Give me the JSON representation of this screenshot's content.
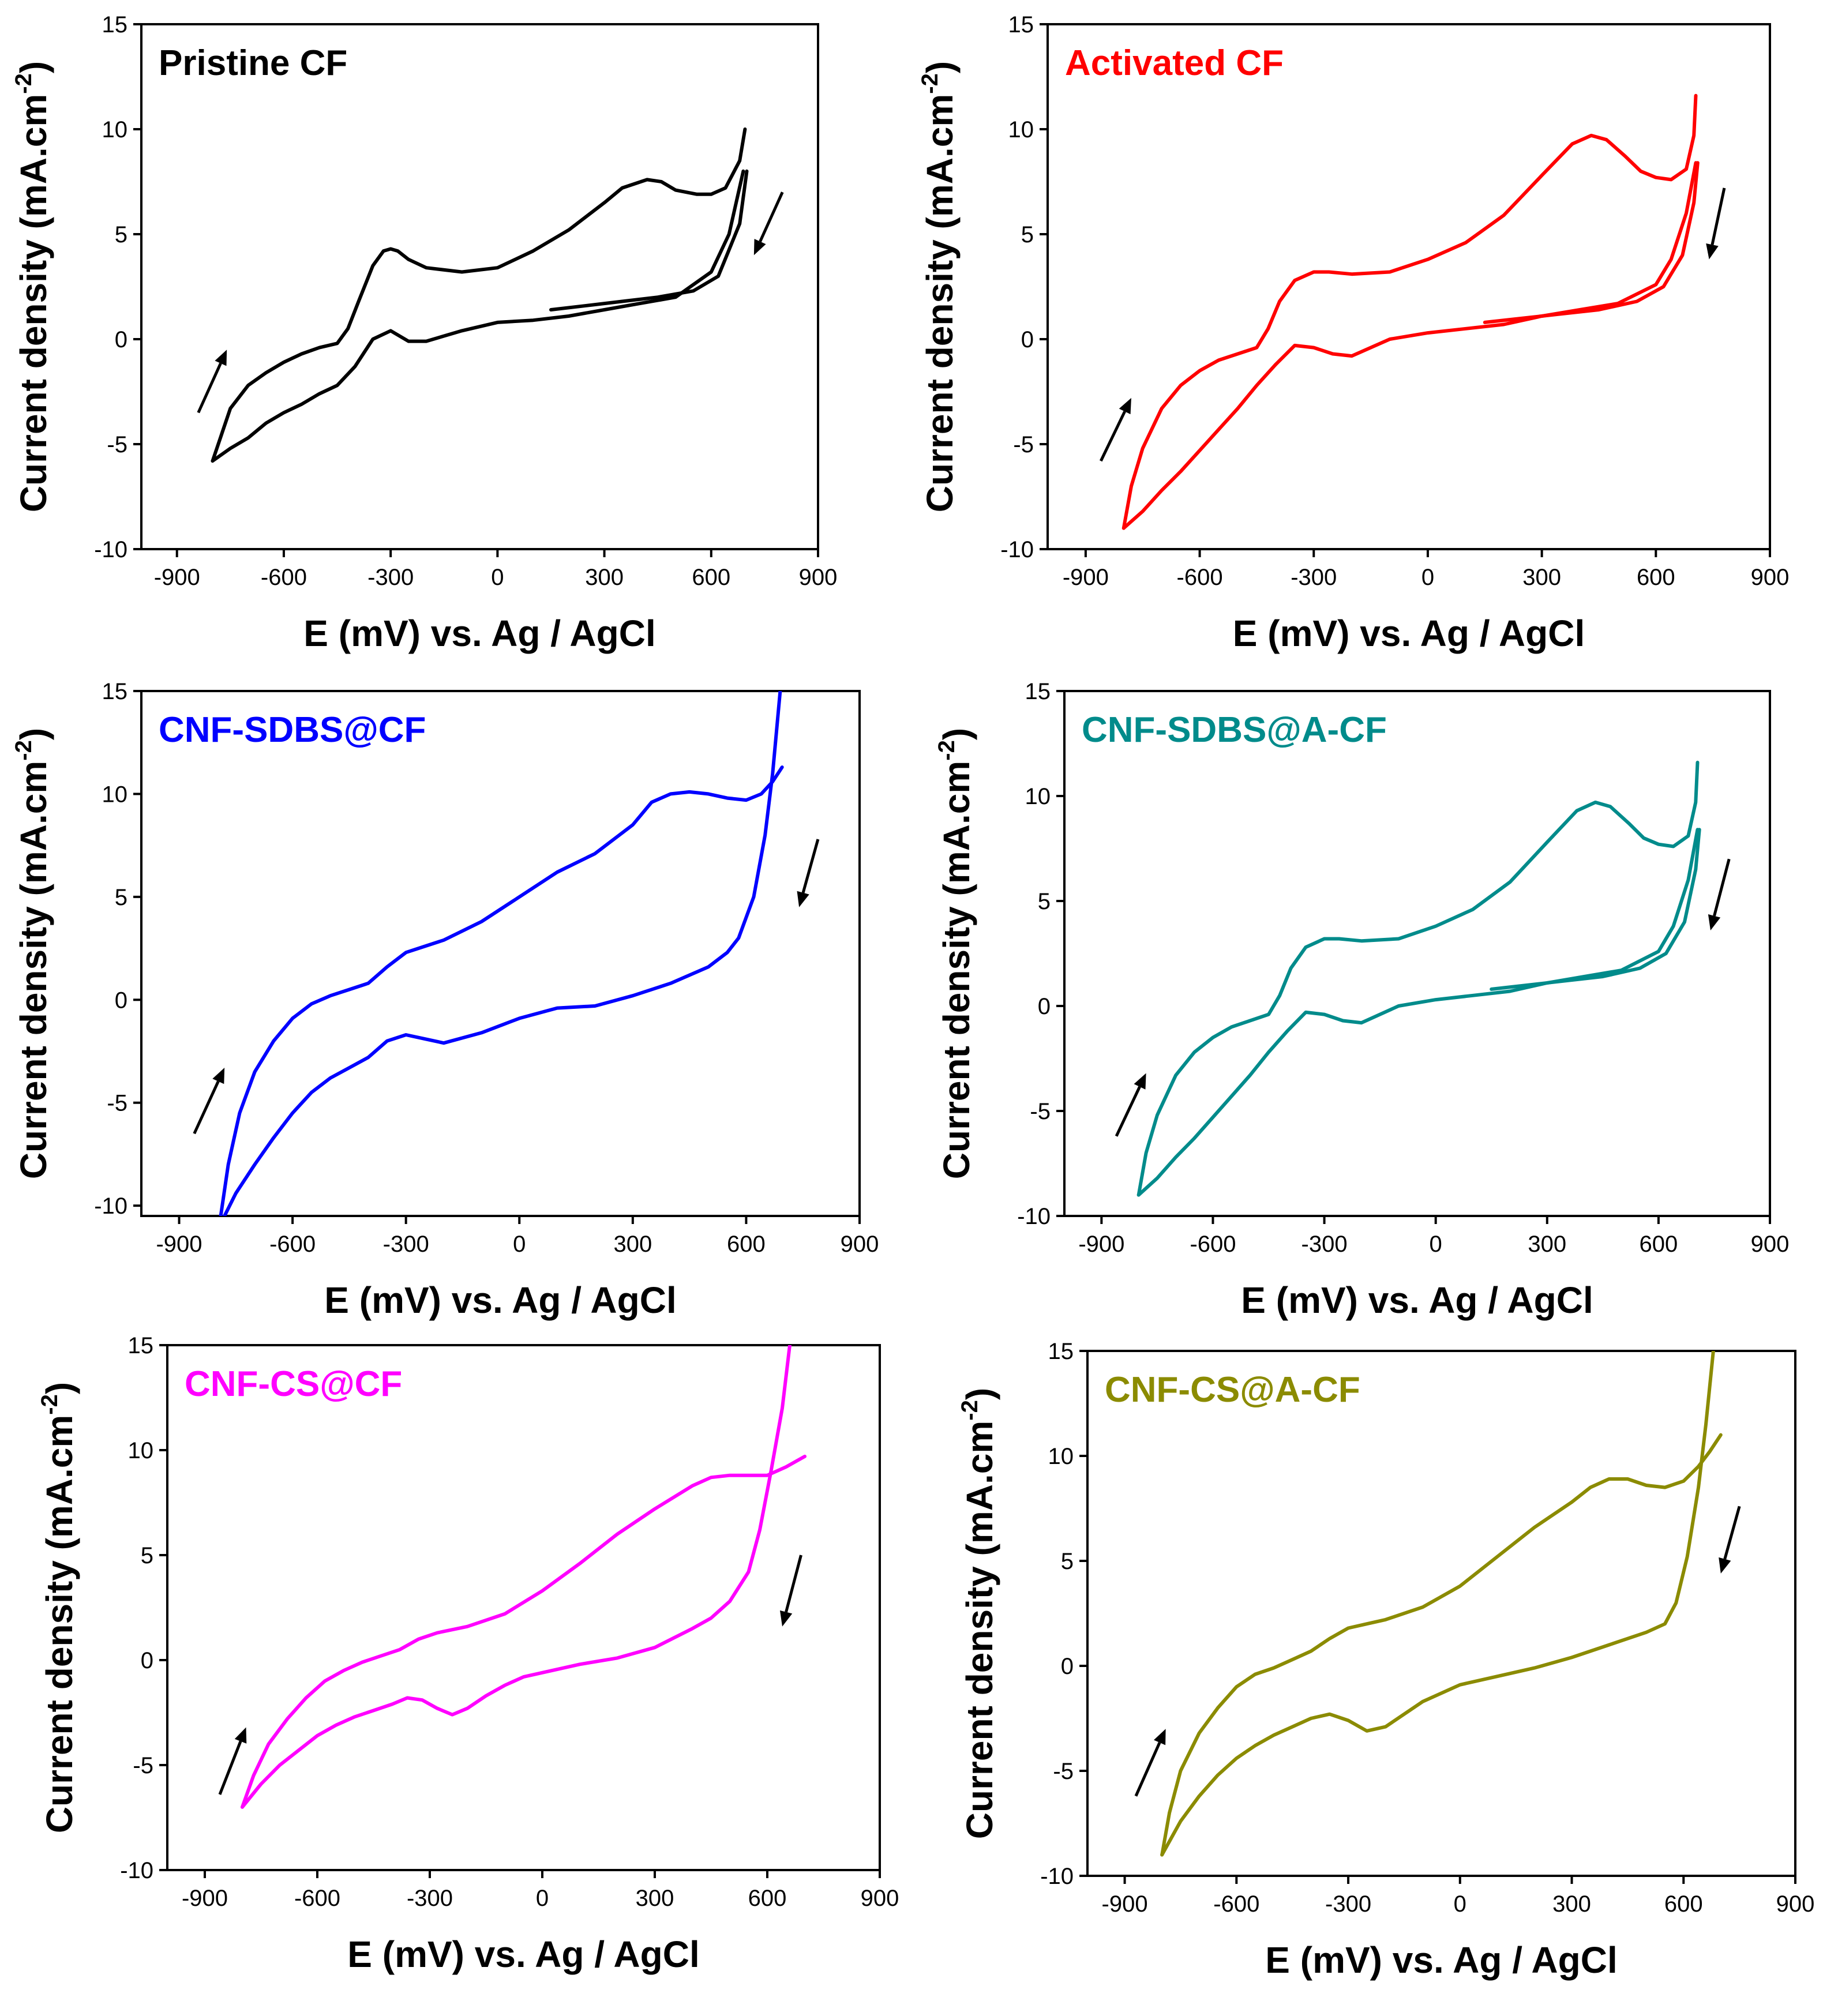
{
  "chart_data": [
    {
      "type": "line",
      "title": "Pristine CF",
      "color": "#000000",
      "xlabel": "E (mV) vs. Ag / AgCl",
      "ylabel": "Current density (mA.cm",
      "ylabel_sup": "-2",
      "ylabel_close": ")",
      "xlim": [
        -1000,
        900
      ],
      "ylim": [
        -10,
        15
      ],
      "xticks": [
        "-900",
        "-600",
        "-300",
        "0",
        "300",
        "600",
        "900"
      ],
      "yticks": [
        "-10",
        "-5",
        "0",
        "5",
        "10",
        "15"
      ],
      "series": [
        {
          "name": "anodic",
          "x": [
            -800,
            -750,
            -700,
            -650,
            -600,
            -550,
            -500,
            -450,
            -420,
            -390,
            -350,
            -320,
            -300,
            -280,
            -250,
            -200,
            -100,
            0,
            100,
            200,
            300,
            350,
            420,
            460,
            500,
            560,
            600,
            640,
            680,
            695
          ],
          "y": [
            -5.8,
            -3.3,
            -2.2,
            -1.6,
            -1.1,
            -0.7,
            -0.4,
            -0.2,
            0.5,
            1.8,
            3.5,
            4.2,
            4.3,
            4.2,
            3.8,
            3.4,
            3.2,
            3.4,
            4.2,
            5.2,
            6.5,
            7.2,
            7.6,
            7.5,
            7.1,
            6.9,
            6.9,
            7.2,
            8.5,
            10.0
          ]
        },
        {
          "name": "cathodic",
          "x": [
            690,
            650,
            600,
            500,
            400,
            300,
            200,
            100,
            0,
            -100,
            -200,
            -250,
            -300,
            -350,
            -400,
            -450,
            -500,
            -550,
            -600,
            -650,
            -700,
            -750,
            -800
          ],
          "y": [
            8.0,
            5.0,
            3.2,
            2.0,
            1.7,
            1.4,
            1.1,
            0.9,
            0.8,
            0.4,
            -0.1,
            -0.1,
            0.4,
            0.0,
            -1.3,
            -2.2,
            -2.6,
            -3.1,
            -3.5,
            -4.0,
            -4.7,
            -5.2,
            -5.8
          ]
        },
        {
          "name": "cycle-tail",
          "x": [
            150,
            250,
            350,
            450,
            550,
            620,
            680,
            700
          ],
          "y": [
            1.4,
            1.6,
            1.8,
            2.0,
            2.3,
            3.0,
            5.5,
            8.0
          ]
        }
      ],
      "arrows": [
        {
          "from": [
            -840,
            -3.5
          ],
          "to": [
            -760,
            -0.5
          ]
        },
        {
          "from": [
            800,
            7.0
          ],
          "to": [
            720,
            4.0
          ]
        }
      ]
    },
    {
      "type": "line",
      "title": "Activated CF",
      "color": "#ff0000",
      "xlabel": "E (mV) vs. Ag / AgCl",
      "ylabel": "Current density (mA.cm",
      "ylabel_sup": "-2",
      "ylabel_close": ")",
      "xlim": [
        -1000,
        900
      ],
      "ylim": [
        -10,
        15
      ],
      "xticks": [
        "-900",
        "-600",
        "-300",
        "0",
        "300",
        "600",
        "900"
      ],
      "yticks": [
        "-10",
        "-5",
        "0",
        "5",
        "10",
        "15"
      ],
      "series": [
        {
          "name": "anodic",
          "x": [
            -800,
            -780,
            -750,
            -700,
            -650,
            -600,
            -550,
            -500,
            -450,
            -420,
            -390,
            -350,
            -300,
            -260,
            -200,
            -100,
            0,
            100,
            200,
            300,
            380,
            430,
            470,
            520,
            560,
            600,
            640,
            680,
            700,
            705
          ],
          "y": [
            -9.0,
            -7.0,
            -5.2,
            -3.3,
            -2.2,
            -1.5,
            -1.0,
            -0.7,
            -0.4,
            0.5,
            1.8,
            2.8,
            3.2,
            3.2,
            3.1,
            3.2,
            3.8,
            4.6,
            5.9,
            7.8,
            9.3,
            9.7,
            9.5,
            8.7,
            8.0,
            7.7,
            7.6,
            8.1,
            9.7,
            11.6
          ]
        },
        {
          "name": "cathodic",
          "x": [
            705,
            680,
            640,
            600,
            500,
            400,
            300,
            200,
            100,
            0,
            -100,
            -200,
            -250,
            -300,
            -350,
            -400,
            -450,
            -500,
            -550,
            -600,
            -650,
            -700,
            -750,
            -800
          ],
          "y": [
            8.4,
            6.0,
            3.8,
            2.6,
            1.7,
            1.4,
            1.1,
            0.7,
            0.5,
            0.3,
            0.0,
            -0.8,
            -0.7,
            -0.4,
            -0.3,
            -1.2,
            -2.2,
            -3.3,
            -4.3,
            -5.3,
            -6.3,
            -7.2,
            -8.2,
            -9.0
          ]
        },
        {
          "name": "cycle-tail",
          "x": [
            150,
            250,
            350,
            450,
            550,
            620,
            670,
            700,
            710
          ],
          "y": [
            0.8,
            1.0,
            1.2,
            1.4,
            1.8,
            2.5,
            4.0,
            6.5,
            8.4
          ]
        }
      ],
      "arrows": [
        {
          "from": [
            -860,
            -5.8
          ],
          "to": [
            -780,
            -2.8
          ]
        },
        {
          "from": [
            780,
            7.2
          ],
          "to": [
            740,
            3.8
          ]
        }
      ]
    },
    {
      "type": "line",
      "title": "CNF-SDBS@CF",
      "color": "#0000ff",
      "xlabel": "E (mV) vs. Ag / AgCl",
      "ylabel": "Current density (mA.cm",
      "ylabel_sup": "-2",
      "ylabel_close": ")",
      "xlim": [
        -1000,
        900
      ],
      "ylim": [
        -10.5,
        15
      ],
      "xticks": [
        "-900",
        "-600",
        "-300",
        "0",
        "300",
        "600",
        "900"
      ],
      "yticks": [
        "-10",
        "-5",
        "0",
        "5",
        "10",
        "15"
      ],
      "series": [
        {
          "name": "anodic",
          "x": [
            -790,
            -770,
            -740,
            -700,
            -650,
            -600,
            -550,
            -500,
            -450,
            -400,
            -350,
            -300,
            -250,
            -200,
            -100,
            0,
            100,
            200,
            300,
            350,
            400,
            450,
            500,
            550,
            600,
            640,
            670,
            695
          ],
          "y": [
            -10.5,
            -8.0,
            -5.5,
            -3.5,
            -2.0,
            -0.9,
            -0.2,
            0.2,
            0.5,
            0.8,
            1.6,
            2.3,
            2.6,
            2.9,
            3.8,
            5.0,
            6.2,
            7.1,
            8.5,
            9.6,
            10.0,
            10.1,
            10.0,
            9.8,
            9.7,
            10.0,
            10.6,
            11.3
          ]
        },
        {
          "name": "cathodic",
          "x": [
            690,
            670,
            650,
            620,
            580,
            550,
            500,
            400,
            300,
            200,
            100,
            0,
            -100,
            -200,
            -250,
            -300,
            -350,
            -400,
            -450,
            -500,
            -550,
            -600,
            -650,
            -700,
            -750,
            -780
          ],
          "y": [
            15.0,
            11.0,
            8.0,
            5.0,
            3.0,
            2.3,
            1.6,
            0.8,
            0.2,
            -0.3,
            -0.4,
            -0.9,
            -1.6,
            -2.1,
            -1.9,
            -1.7,
            -2.0,
            -2.8,
            -3.3,
            -3.8,
            -4.5,
            -5.5,
            -6.7,
            -8.0,
            -9.4,
            -10.5
          ]
        }
      ],
      "arrows": [
        {
          "from": [
            -860,
            -6.5
          ],
          "to": [
            -780,
            -3.3
          ]
        },
        {
          "from": [
            790,
            7.8
          ],
          "to": [
            740,
            4.5
          ]
        }
      ]
    },
    {
      "type": "line",
      "title": "CNF-SDBS@A-CF",
      "color": "#008b8b",
      "xlabel": "E (mV) vs. Ag / AgCl",
      "ylabel": "Current density (mA.cm",
      "ylabel_sup": "-2",
      "ylabel_close": ")",
      "xlim": [
        -1000,
        900
      ],
      "ylim": [
        -10,
        15
      ],
      "xticks": [
        "-900",
        "-600",
        "-300",
        "0",
        "300",
        "600",
        "900"
      ],
      "yticks": [
        "-10",
        "-5",
        "0",
        "5",
        "10",
        "15"
      ],
      "series": [
        {
          "name": "anodic",
          "x": [
            -800,
            -780,
            -750,
            -700,
            -650,
            -600,
            -550,
            -500,
            -450,
            -420,
            -390,
            -350,
            -300,
            -260,
            -200,
            -100,
            0,
            100,
            200,
            300,
            380,
            430,
            470,
            520,
            560,
            600,
            640,
            680,
            700,
            705
          ],
          "y": [
            -9.0,
            -7.0,
            -5.2,
            -3.3,
            -2.2,
            -1.5,
            -1.0,
            -0.7,
            -0.4,
            0.5,
            1.8,
            2.8,
            3.2,
            3.2,
            3.1,
            3.2,
            3.8,
            4.6,
            5.9,
            7.8,
            9.3,
            9.7,
            9.5,
            8.7,
            8.0,
            7.7,
            7.6,
            8.1,
            9.7,
            11.6
          ]
        },
        {
          "name": "cathodic",
          "x": [
            705,
            680,
            640,
            600,
            500,
            400,
            300,
            200,
            100,
            0,
            -100,
            -200,
            -250,
            -300,
            -350,
            -400,
            -450,
            -500,
            -550,
            -600,
            -650,
            -700,
            -750,
            -800
          ],
          "y": [
            8.4,
            6.0,
            3.8,
            2.6,
            1.7,
            1.4,
            1.1,
            0.7,
            0.5,
            0.3,
            0.0,
            -0.8,
            -0.7,
            -0.4,
            -0.3,
            -1.2,
            -2.2,
            -3.3,
            -4.3,
            -5.3,
            -6.3,
            -7.2,
            -8.2,
            -9.0
          ]
        },
        {
          "name": "cycle-tail",
          "x": [
            150,
            250,
            350,
            450,
            550,
            620,
            670,
            700,
            710
          ],
          "y": [
            0.8,
            1.0,
            1.2,
            1.4,
            1.8,
            2.5,
            4.0,
            6.5,
            8.4
          ]
        }
      ],
      "arrows": [
        {
          "from": [
            -860,
            -6.2
          ],
          "to": [
            -780,
            -3.2
          ]
        },
        {
          "from": [
            790,
            7.0
          ],
          "to": [
            740,
            3.6
          ]
        }
      ]
    },
    {
      "type": "line",
      "title": "CNF-CS@CF",
      "color": "#ff00ff",
      "xlabel": "E (mV) vs. Ag / AgCl",
      "ylabel": "Current density (mA.cm",
      "ylabel_sup": "-2",
      "ylabel_close": ")",
      "xlim": [
        -1000,
        900
      ],
      "ylim": [
        -10,
        15
      ],
      "xticks": [
        "-900",
        "-600",
        "-300",
        "0",
        "300",
        "600",
        "900"
      ],
      "yticks": [
        "-10",
        "-5",
        "0",
        "5",
        "10",
        "15"
      ],
      "series": [
        {
          "name": "anodic",
          "x": [
            -800,
            -770,
            -730,
            -680,
            -630,
            -580,
            -530,
            -480,
            -430,
            -380,
            -330,
            -280,
            -200,
            -100,
            0,
            100,
            200,
            300,
            400,
            450,
            500,
            550,
            600,
            650,
            700
          ],
          "y": [
            -7.0,
            -5.5,
            -4.0,
            -2.8,
            -1.8,
            -1.0,
            -0.5,
            -0.1,
            0.2,
            0.5,
            1.0,
            1.3,
            1.6,
            2.2,
            3.3,
            4.6,
            6.0,
            7.2,
            8.3,
            8.7,
            8.8,
            8.8,
            8.8,
            9.2,
            9.7
          ]
        },
        {
          "name": "cathodic",
          "x": [
            660,
            640,
            610,
            580,
            550,
            500,
            450,
            400,
            300,
            200,
            100,
            0,
            -50,
            -100,
            -150,
            -200,
            -240,
            -280,
            -320,
            -360,
            -400,
            -450,
            -500,
            -550,
            -600,
            -650,
            -700,
            -750,
            -800
          ],
          "y": [
            15.0,
            12.0,
            9.0,
            6.2,
            4.2,
            2.8,
            2.0,
            1.5,
            0.6,
            0.1,
            -0.2,
            -0.6,
            -0.8,
            -1.2,
            -1.7,
            -2.3,
            -2.6,
            -2.3,
            -1.9,
            -1.8,
            -2.1,
            -2.4,
            -2.7,
            -3.1,
            -3.6,
            -4.3,
            -5.0,
            -5.9,
            -7.0
          ]
        }
      ],
      "arrows": [
        {
          "from": [
            -860,
            -6.4
          ],
          "to": [
            -790,
            -3.2
          ]
        },
        {
          "from": [
            690,
            5.0
          ],
          "to": [
            640,
            1.6
          ]
        }
      ]
    },
    {
      "type": "line",
      "title": "CNF-CS@A-CF",
      "color": "#8b8b00",
      "xlabel": "E (mV) vs. Ag / AgCl",
      "ylabel": "Current density (mA.cm",
      "ylabel_sup": "-2",
      "ylabel_close": ")",
      "xlim": [
        -1000,
        900
      ],
      "ylim": [
        -10,
        15
      ],
      "xticks": [
        "-900",
        "-600",
        "-300",
        "0",
        "300",
        "600",
        "900"
      ],
      "yticks": [
        "-10",
        "-5",
        "0",
        "5",
        "10",
        "15"
      ],
      "series": [
        {
          "name": "anodic",
          "x": [
            -800,
            -780,
            -750,
            -700,
            -650,
            -600,
            -550,
            -500,
            -450,
            -400,
            -350,
            -300,
            -250,
            -200,
            -100,
            0,
            100,
            200,
            300,
            350,
            400,
            450,
            500,
            550,
            600,
            640,
            670,
            700
          ],
          "y": [
            -9.0,
            -7.0,
            -5.0,
            -3.2,
            -2.0,
            -1.0,
            -0.4,
            -0.1,
            0.3,
            0.7,
            1.3,
            1.8,
            2.0,
            2.2,
            2.8,
            3.8,
            5.2,
            6.6,
            7.8,
            8.5,
            8.9,
            8.9,
            8.6,
            8.5,
            8.8,
            9.5,
            10.2,
            11.0
          ]
        },
        {
          "name": "cathodic",
          "x": [
            680,
            660,
            640,
            610,
            580,
            550,
            500,
            400,
            300,
            200,
            100,
            0,
            -100,
            -200,
            -250,
            -300,
            -350,
            -400,
            -450,
            -500,
            -550,
            -600,
            -650,
            -700,
            -750,
            -800
          ],
          "y": [
            15.0,
            11.5,
            8.5,
            5.2,
            3.0,
            2.0,
            1.6,
            1.0,
            0.4,
            -0.1,
            -0.5,
            -0.9,
            -1.7,
            -2.9,
            -3.1,
            -2.6,
            -2.3,
            -2.5,
            -2.9,
            -3.3,
            -3.8,
            -4.4,
            -5.2,
            -6.2,
            -7.4,
            -9.0
          ]
        }
      ],
      "arrows": [
        {
          "from": [
            -870,
            -6.2
          ],
          "to": [
            -790,
            -3.0
          ]
        },
        {
          "from": [
            750,
            7.6
          ],
          "to": [
            700,
            4.4
          ]
        }
      ]
    }
  ]
}
